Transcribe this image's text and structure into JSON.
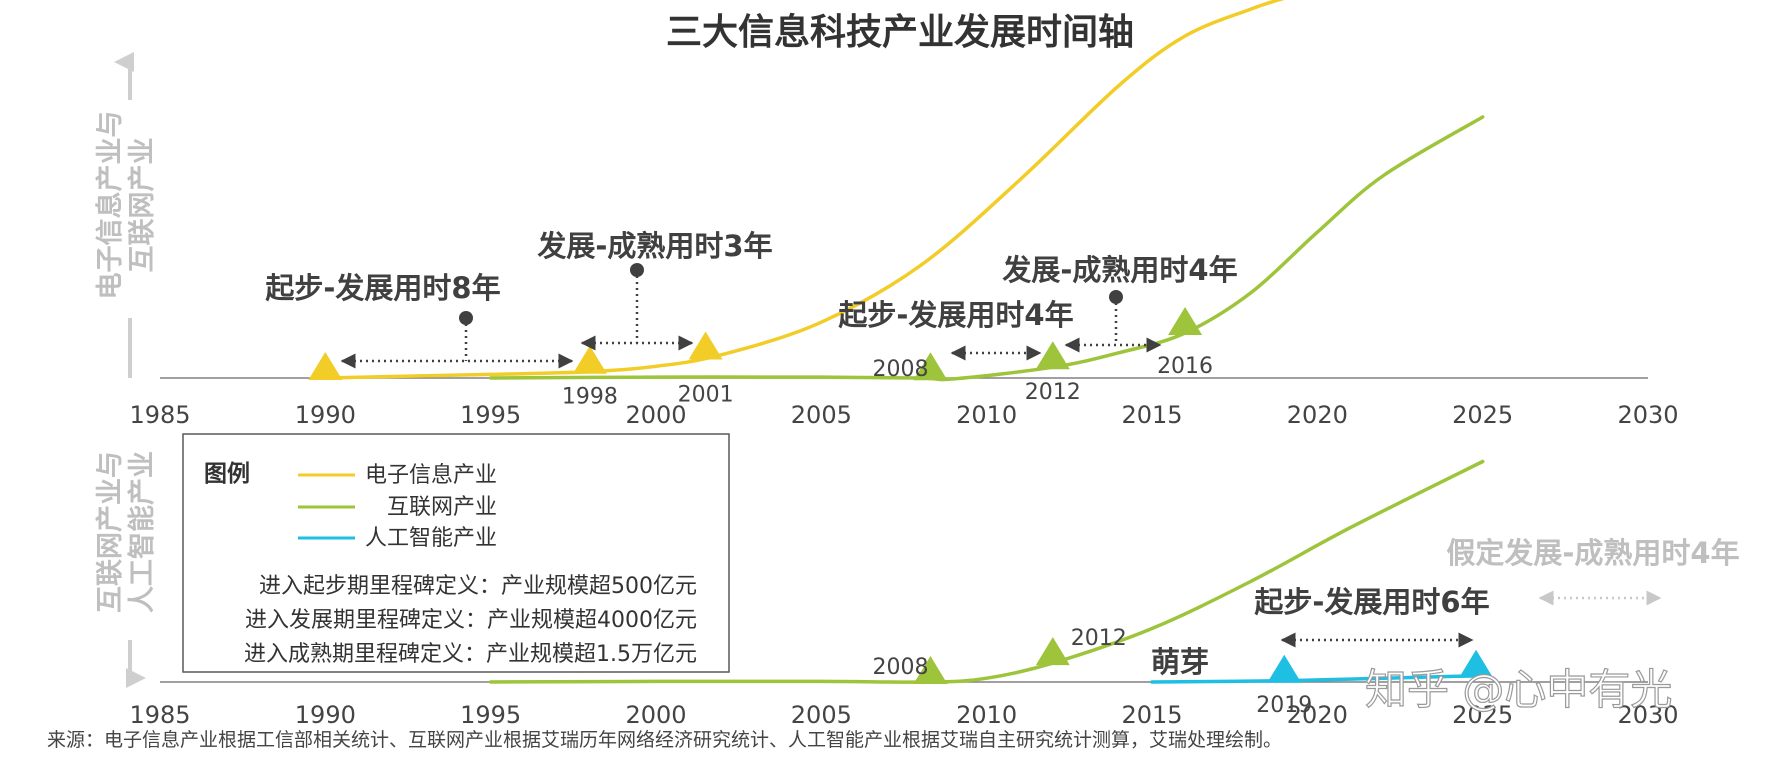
{
  "chart_data": {
    "type": "line",
    "title": "三大信息科技产业发展时间轴",
    "panels": [
      {
        "name": "top",
        "ylabel": [
          "电子信息产业与",
          "互联网产业"
        ],
        "xlim": [
          1985,
          2030
        ],
        "xticks": [
          "1985",
          "1990",
          "1995",
          "2000",
          "2005",
          "2010",
          "2015",
          "2020",
          "2025",
          "2030"
        ],
        "series": [
          {
            "name": "电子信息产业",
            "color": "#f2cc27",
            "x": [
              1990,
              1995,
              1998,
              2000,
              2002,
              2005,
              2008,
              2011,
              2014,
              2016,
              2018,
              2019
            ],
            "y": [
              0,
              0.04,
              0.07,
              0.13,
              0.26,
              0.62,
              1.25,
              2.2,
              3.25,
              3.8,
              4.1,
              4.22
            ]
          },
          {
            "name": "互联网产业",
            "color": "#9dc43a",
            "x": [
              1995,
              2000,
              2005,
              2008,
              2009,
              2012,
              2014,
              2016,
              2018,
              2020,
              2022,
              2025
            ],
            "y": [
              0,
              0.01,
              0.01,
              0,
              -0.01,
              0.12,
              0.28,
              0.5,
              0.95,
              1.62,
              2.25,
              2.9
            ]
          }
        ],
        "milestones": [
          {
            "series": "电子信息产业",
            "year": 1990,
            "label": ""
          },
          {
            "series": "电子信息产业",
            "year": 1998,
            "label": "1998"
          },
          {
            "series": "电子信息产业",
            "year": 2001.5,
            "label": "2001"
          },
          {
            "series": "互联网产业",
            "year": 2008.3,
            "label": "2008"
          },
          {
            "series": "互联网产业",
            "year": 2012,
            "label": "2012"
          },
          {
            "series": "互联网产业",
            "year": 2016,
            "label": "2016"
          }
        ],
        "annotations": [
          {
            "text": "起步-发展用时8年",
            "from": 1990,
            "to": 1998
          },
          {
            "text": "发展-成熟用时3年",
            "from": 1998,
            "to": 2001.5
          },
          {
            "text": "起步-发展用时4年",
            "from": 2008.3,
            "to": 2012
          },
          {
            "text": "发展-成熟用时4年",
            "from": 2012,
            "to": 2016
          }
        ]
      },
      {
        "name": "bottom",
        "ylabel": [
          "互联网产业与",
          "人工智能产业"
        ],
        "xlim": [
          1985,
          2030
        ],
        "xticks": [
          "1985",
          "1990",
          "1995",
          "2000",
          "2005",
          "2010",
          "2015",
          "2020",
          "2025",
          "2030"
        ],
        "series": [
          {
            "name": "互联网产业",
            "color": "#9dc43a",
            "x": [
              1995,
              2000,
              2005,
              2008.3,
              2010,
              2012,
              2015,
              2018,
              2021,
              2025
            ],
            "y": [
              0,
              0.01,
              0.01,
              0,
              0.06,
              0.3,
              0.85,
              1.6,
              2.45,
              3.5
            ]
          },
          {
            "name": "人工智能产业",
            "color": "#1fbfe3",
            "x": [
              2015,
              2019,
              2022,
              2024.8
            ],
            "y": [
              0,
              0.02,
              0.06,
              0.1
            ]
          }
        ],
        "milestones": [
          {
            "series": "互联网产业",
            "year": 2008.3,
            "label": "2008"
          },
          {
            "series": "互联网产业",
            "year": 2012,
            "label": "2012"
          },
          {
            "series": "人工智能产业",
            "year": 2019,
            "label": "2019"
          },
          {
            "series": "人工智能产业",
            "year": 2024.8,
            "label": ""
          }
        ],
        "annotations": [
          {
            "text": "萌芽",
            "at": 2016
          },
          {
            "text": "起步-发展用时6年",
            "from": 2019,
            "to": 2024.8
          },
          {
            "text": "假定发展-成熟用时4年",
            "from": 2025.5,
            "to": 2029.5,
            "style": "assumed"
          }
        ]
      }
    ],
    "legend": {
      "title": "图例",
      "items": [
        {
          "label": "电子信息产业",
          "color": "#f2cc27"
        },
        {
          "label": "互联网产业",
          "color": "#9dc43a"
        },
        {
          "label": "人工智能产业",
          "color": "#1fbfe3"
        }
      ],
      "definitions": [
        "进入起步期里程碑定义：产业规模超500亿元",
        "进入发展期里程碑定义：产业规模超4000亿元",
        "进入成熟期里程碑定义：产业规模超1.5万亿元"
      ]
    },
    "source": "来源：电子信息产业根据工信部相关统计、互联网产业根据艾瑞历年网络经济研究统计、人工智能产业根据艾瑞自主研究统计测算，艾瑞处理绘制。",
    "watermark": "知乎 @心中有光"
  }
}
